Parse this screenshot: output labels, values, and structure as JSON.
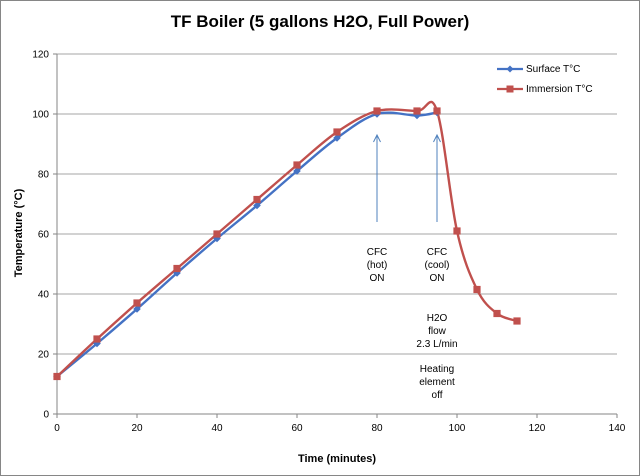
{
  "chart_data": {
    "type": "line",
    "title": "TF Boiler (5 gallons H2O, Full Power)",
    "xlabel": "Time (minutes)",
    "ylabel": "Temperature (°C)",
    "xlim": [
      0,
      140
    ],
    "ylim": [
      0,
      120
    ],
    "xticks": [
      0,
      20,
      40,
      60,
      80,
      100,
      120,
      140
    ],
    "yticks": [
      0,
      20,
      40,
      60,
      80,
      100,
      120
    ],
    "grid": "horizontal major gridlines",
    "legend_position": "top-right",
    "series": [
      {
        "name": "Surface T°C",
        "color": "#4472C4",
        "marker": "diamond",
        "x": [
          0,
          10,
          20,
          30,
          40,
          50,
          60,
          70,
          80,
          90,
          95
        ],
        "y": [
          12.5,
          23.5,
          35,
          47,
          58.5,
          69.5,
          81,
          92,
          100,
          99.5,
          100.5
        ]
      },
      {
        "name": "Immersion T°C",
        "color": "#C0504D",
        "marker": "square",
        "x": [
          0,
          10,
          20,
          30,
          40,
          50,
          60,
          70,
          80,
          90,
          95,
          100,
          105,
          110,
          115
        ],
        "y": [
          12.5,
          25,
          37,
          48.5,
          60,
          71.5,
          83,
          94,
          101,
          101,
          101,
          61,
          41.5,
          33.5,
          31
        ]
      }
    ],
    "annotations": [
      {
        "id": "cfc-hot",
        "lines": [
          "CFC",
          "(hot)",
          "ON"
        ],
        "x": 80,
        "y": 53,
        "arrow_from": [
          80,
          64
        ],
        "arrow_to": [
          80,
          93
        ]
      },
      {
        "id": "cfc-cool",
        "lines": [
          "CFC",
          "(cool)",
          "ON"
        ],
        "x": 95,
        "y": 53,
        "arrow_from": [
          95,
          64
        ],
        "arrow_to": [
          95,
          93
        ]
      },
      {
        "id": "h2o-flow",
        "lines": [
          "H2O",
          "flow",
          "2.3 L/min"
        ],
        "x": 95,
        "y": 31
      },
      {
        "id": "heating-off",
        "lines": [
          "Heating",
          "element",
          "off"
        ],
        "x": 95,
        "y": 14
      }
    ]
  },
  "colors": {
    "axis": "#868686",
    "grid": "#868686",
    "arrow": "#4F81BD",
    "surface": "#4472C4",
    "immersion": "#C0504D"
  }
}
